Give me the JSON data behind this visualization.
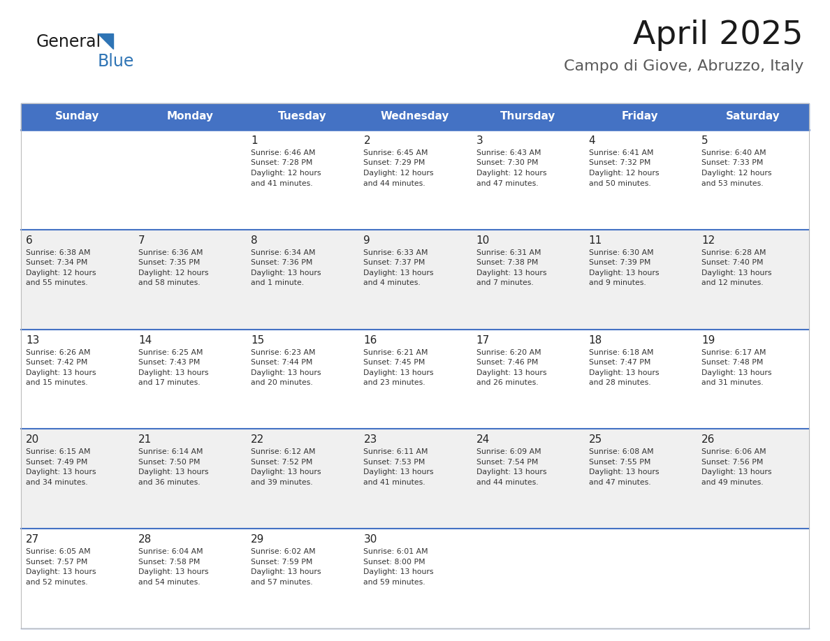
{
  "title": "April 2025",
  "subtitle": "Campo di Giove, Abruzzo, Italy",
  "header_bg_color": "#4472C4",
  "header_text_color": "#FFFFFF",
  "days_of_week": [
    "Sunday",
    "Monday",
    "Tuesday",
    "Wednesday",
    "Thursday",
    "Friday",
    "Saturday"
  ],
  "row_colors": [
    "#FFFFFF",
    "#F0F0F0"
  ],
  "separator_color": "#4472C4",
  "cell_text_color": "#333333",
  "day_num_color": "#222222",
  "calendar": [
    [
      {
        "day": "",
        "sunrise": "",
        "sunset": "",
        "daylight": ""
      },
      {
        "day": "",
        "sunrise": "",
        "sunset": "",
        "daylight": ""
      },
      {
        "day": "1",
        "sunrise": "6:46 AM",
        "sunset": "7:28 PM",
        "daylight": "12 hours\nand 41 minutes."
      },
      {
        "day": "2",
        "sunrise": "6:45 AM",
        "sunset": "7:29 PM",
        "daylight": "12 hours\nand 44 minutes."
      },
      {
        "day": "3",
        "sunrise": "6:43 AM",
        "sunset": "7:30 PM",
        "daylight": "12 hours\nand 47 minutes."
      },
      {
        "day": "4",
        "sunrise": "6:41 AM",
        "sunset": "7:32 PM",
        "daylight": "12 hours\nand 50 minutes."
      },
      {
        "day": "5",
        "sunrise": "6:40 AM",
        "sunset": "7:33 PM",
        "daylight": "12 hours\nand 53 minutes."
      }
    ],
    [
      {
        "day": "6",
        "sunrise": "6:38 AM",
        "sunset": "7:34 PM",
        "daylight": "12 hours\nand 55 minutes."
      },
      {
        "day": "7",
        "sunrise": "6:36 AM",
        "sunset": "7:35 PM",
        "daylight": "12 hours\nand 58 minutes."
      },
      {
        "day": "8",
        "sunrise": "6:34 AM",
        "sunset": "7:36 PM",
        "daylight": "13 hours\nand 1 minute."
      },
      {
        "day": "9",
        "sunrise": "6:33 AM",
        "sunset": "7:37 PM",
        "daylight": "13 hours\nand 4 minutes."
      },
      {
        "day": "10",
        "sunrise": "6:31 AM",
        "sunset": "7:38 PM",
        "daylight": "13 hours\nand 7 minutes."
      },
      {
        "day": "11",
        "sunrise": "6:30 AM",
        "sunset": "7:39 PM",
        "daylight": "13 hours\nand 9 minutes."
      },
      {
        "day": "12",
        "sunrise": "6:28 AM",
        "sunset": "7:40 PM",
        "daylight": "13 hours\nand 12 minutes."
      }
    ],
    [
      {
        "day": "13",
        "sunrise": "6:26 AM",
        "sunset": "7:42 PM",
        "daylight": "13 hours\nand 15 minutes."
      },
      {
        "day": "14",
        "sunrise": "6:25 AM",
        "sunset": "7:43 PM",
        "daylight": "13 hours\nand 17 minutes."
      },
      {
        "day": "15",
        "sunrise": "6:23 AM",
        "sunset": "7:44 PM",
        "daylight": "13 hours\nand 20 minutes."
      },
      {
        "day": "16",
        "sunrise": "6:21 AM",
        "sunset": "7:45 PM",
        "daylight": "13 hours\nand 23 minutes."
      },
      {
        "day": "17",
        "sunrise": "6:20 AM",
        "sunset": "7:46 PM",
        "daylight": "13 hours\nand 26 minutes."
      },
      {
        "day": "18",
        "sunrise": "6:18 AM",
        "sunset": "7:47 PM",
        "daylight": "13 hours\nand 28 minutes."
      },
      {
        "day": "19",
        "sunrise": "6:17 AM",
        "sunset": "7:48 PM",
        "daylight": "13 hours\nand 31 minutes."
      }
    ],
    [
      {
        "day": "20",
        "sunrise": "6:15 AM",
        "sunset": "7:49 PM",
        "daylight": "13 hours\nand 34 minutes."
      },
      {
        "day": "21",
        "sunrise": "6:14 AM",
        "sunset": "7:50 PM",
        "daylight": "13 hours\nand 36 minutes."
      },
      {
        "day": "22",
        "sunrise": "6:12 AM",
        "sunset": "7:52 PM",
        "daylight": "13 hours\nand 39 minutes."
      },
      {
        "day": "23",
        "sunrise": "6:11 AM",
        "sunset": "7:53 PM",
        "daylight": "13 hours\nand 41 minutes."
      },
      {
        "day": "24",
        "sunrise": "6:09 AM",
        "sunset": "7:54 PM",
        "daylight": "13 hours\nand 44 minutes."
      },
      {
        "day": "25",
        "sunrise": "6:08 AM",
        "sunset": "7:55 PM",
        "daylight": "13 hours\nand 47 minutes."
      },
      {
        "day": "26",
        "sunrise": "6:06 AM",
        "sunset": "7:56 PM",
        "daylight": "13 hours\nand 49 minutes."
      }
    ],
    [
      {
        "day": "27",
        "sunrise": "6:05 AM",
        "sunset": "7:57 PM",
        "daylight": "13 hours\nand 52 minutes."
      },
      {
        "day": "28",
        "sunrise": "6:04 AM",
        "sunset": "7:58 PM",
        "daylight": "13 hours\nand 54 minutes."
      },
      {
        "day": "29",
        "sunrise": "6:02 AM",
        "sunset": "7:59 PM",
        "daylight": "13 hours\nand 57 minutes."
      },
      {
        "day": "30",
        "sunrise": "6:01 AM",
        "sunset": "8:00 PM",
        "daylight": "13 hours\nand 59 minutes."
      },
      {
        "day": "",
        "sunrise": "",
        "sunset": "",
        "daylight": ""
      },
      {
        "day": "",
        "sunrise": "",
        "sunset": "",
        "daylight": ""
      },
      {
        "day": "",
        "sunrise": "",
        "sunset": "",
        "daylight": ""
      }
    ]
  ],
  "logo_color_general": "#1a1a1a",
  "logo_color_blue": "#2E74B5",
  "logo_triangle_color": "#2E74B5"
}
